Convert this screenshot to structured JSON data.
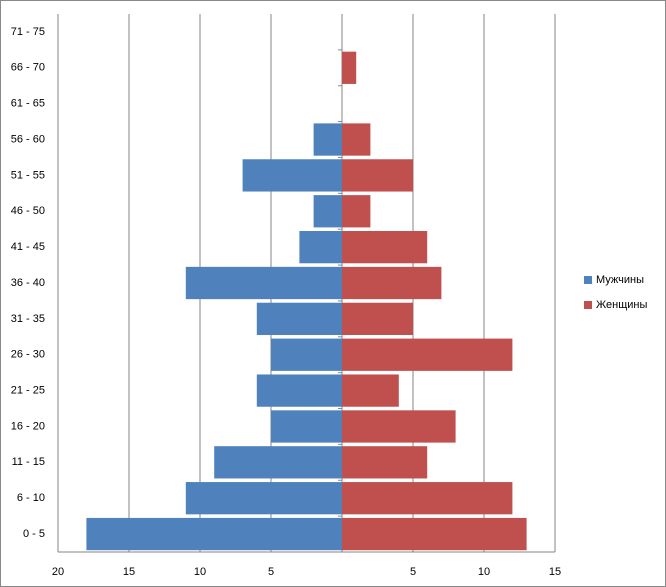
{
  "chart_data": {
    "type": "bar",
    "orientation": "horizontal",
    "categories": [
      "0 - 5",
      "6 - 10",
      "11 - 15",
      "16 - 20",
      "21 - 25",
      "26 - 30",
      "31 - 35",
      "36 - 40",
      "41 - 45",
      "46 - 50",
      "51 - 55",
      "56 - 60",
      "61 - 65",
      "66 - 70",
      "71 - 75"
    ],
    "series": [
      {
        "name": "Мужчины",
        "color": "#4f81bd",
        "values": [
          -18,
          -11,
          -9,
          -5,
          -6,
          -5,
          -6,
          -11,
          -3,
          -2,
          -7,
          -2,
          0,
          0,
          0
        ]
      },
      {
        "name": "Женщины",
        "color": "#c0504d",
        "values": [
          13,
          12,
          6,
          8,
          4,
          12,
          5,
          7,
          6,
          2,
          5,
          2,
          0,
          1,
          0
        ]
      }
    ],
    "xlim": [
      -20,
      15
    ],
    "xticks": [
      {
        "value": -20,
        "label": "20"
      },
      {
        "value": -15,
        "label": "15"
      },
      {
        "value": -10,
        "label": "10"
      },
      {
        "value": -5,
        "label": "5"
      },
      5,
      10,
      15
    ],
    "grid": true,
    "legend": "right"
  }
}
